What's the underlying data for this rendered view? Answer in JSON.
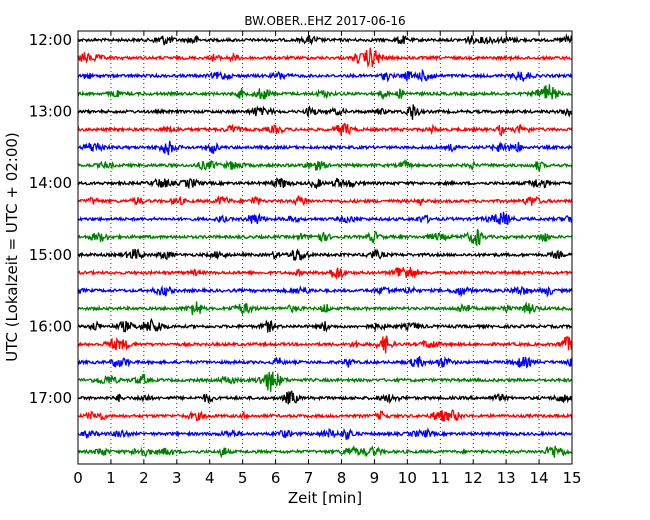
{
  "chart_data": {
    "type": "line",
    "title": "BW.OBER..EHZ 2017-06-16",
    "xlabel": "Zeit  [min]",
    "ylabel": "UTC (Lokalzeit = UTC + 02:00)",
    "xlim": [
      0,
      15
    ],
    "x_ticks": [
      "0",
      "1",
      "2",
      "3",
      "4",
      "5",
      "6",
      "7",
      "8",
      "9",
      "10",
      "11",
      "12",
      "13",
      "14",
      "15"
    ],
    "y_tick_labels": [
      "12:00",
      "13:00",
      "14:00",
      "15:00",
      "16:00",
      "17:00"
    ],
    "grid": "vertical dotted at each minute",
    "traces_per_hour": 4,
    "trace_interval_min": 15,
    "color_cycle": [
      "#000000",
      "#ff0000",
      "#0000ff",
      "#008000"
    ],
    "rows": [
      {
        "start": "12:00",
        "color": "#000000"
      },
      {
        "start": "12:15",
        "color": "#ff0000"
      },
      {
        "start": "12:30",
        "color": "#0000ff"
      },
      {
        "start": "12:45",
        "color": "#008000"
      },
      {
        "start": "13:00",
        "color": "#000000"
      },
      {
        "start": "13:15",
        "color": "#ff0000"
      },
      {
        "start": "13:30",
        "color": "#0000ff"
      },
      {
        "start": "13:45",
        "color": "#008000"
      },
      {
        "start": "14:00",
        "color": "#000000"
      },
      {
        "start": "14:15",
        "color": "#ff0000"
      },
      {
        "start": "14:30",
        "color": "#0000ff"
      },
      {
        "start": "14:45",
        "color": "#008000"
      },
      {
        "start": "15:00",
        "color": "#000000"
      },
      {
        "start": "15:15",
        "color": "#ff0000"
      },
      {
        "start": "15:30",
        "color": "#0000ff"
      },
      {
        "start": "15:45",
        "color": "#008000"
      },
      {
        "start": "16:00",
        "color": "#000000"
      },
      {
        "start": "16:15",
        "color": "#ff0000"
      },
      {
        "start": "16:30",
        "color": "#0000ff"
      },
      {
        "start": "16:45",
        "color": "#008000"
      },
      {
        "start": "17:00",
        "color": "#000000"
      },
      {
        "start": "17:15",
        "color": "#ff0000"
      },
      {
        "start": "17:30",
        "color": "#0000ff"
      },
      {
        "start": "17:45",
        "color": "#008000"
      }
    ]
  }
}
